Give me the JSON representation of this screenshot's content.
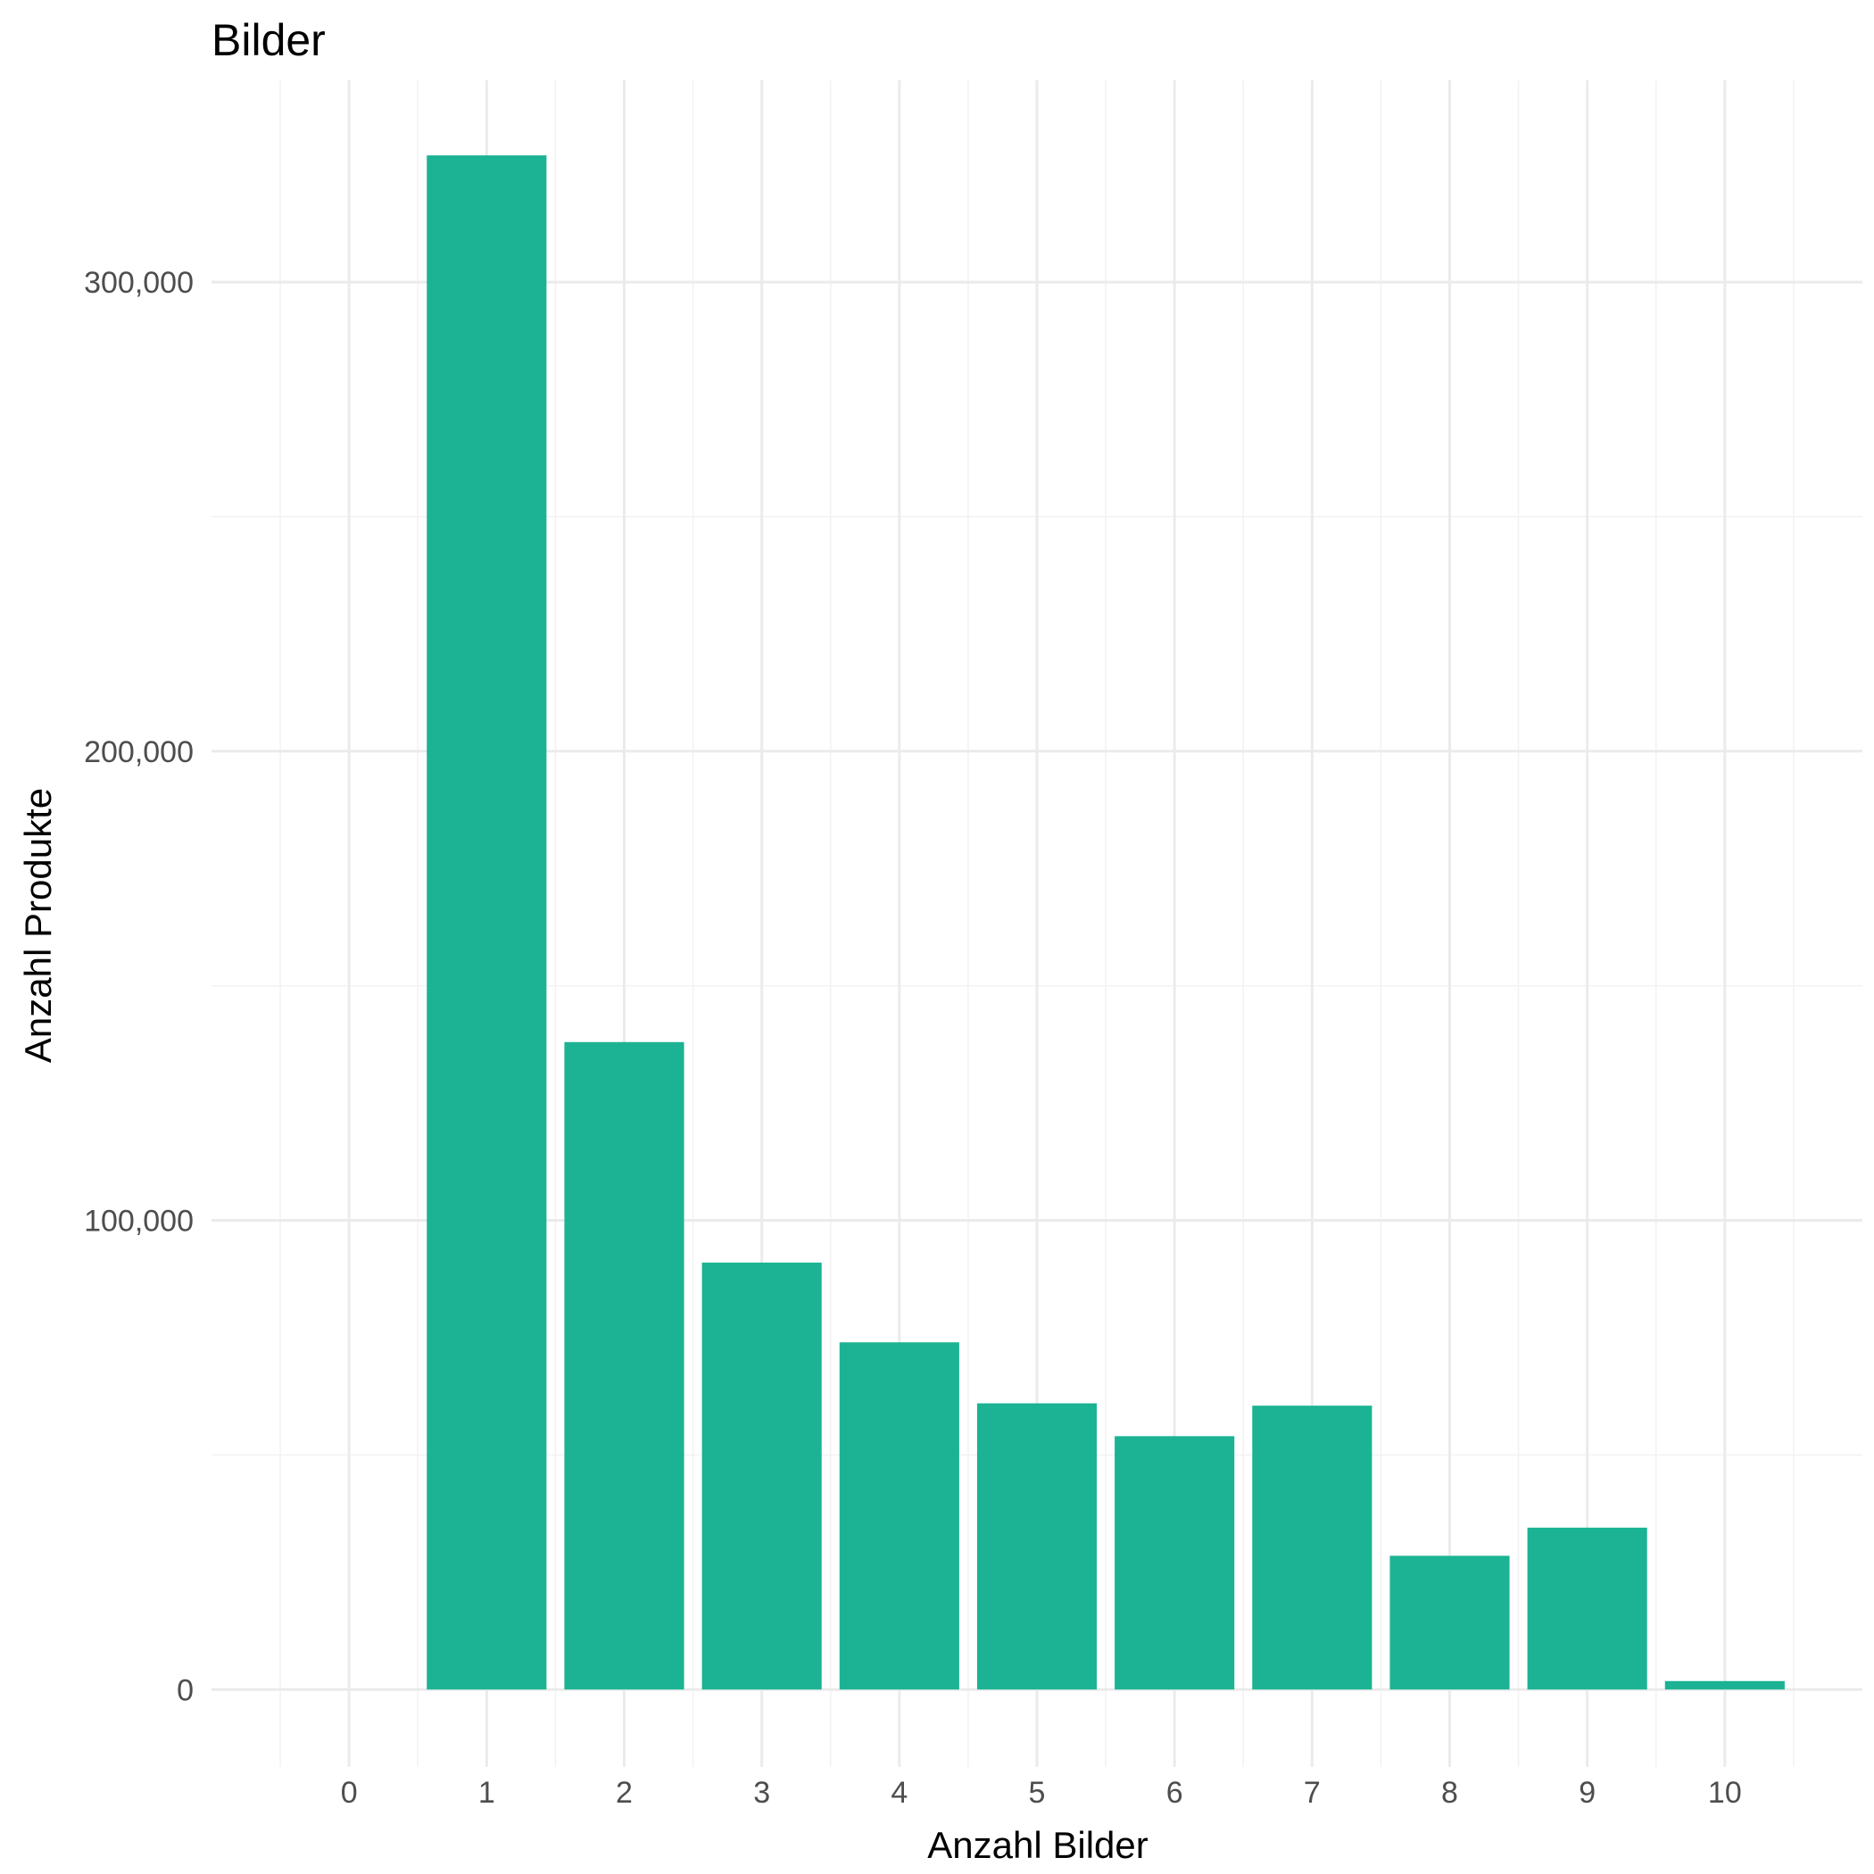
{
  "chart_data": {
    "type": "bar",
    "title": "Bilder",
    "xlabel": "Anzahl Bilder",
    "ylabel": "Anzahl Produkte",
    "categories": [
      0,
      1,
      2,
      3,
      4,
      5,
      6,
      7,
      8,
      9,
      10
    ],
    "values": [
      0,
      327000,
      138000,
      91000,
      74000,
      61000,
      54000,
      60500,
      28500,
      34500,
      1800
    ],
    "x_ticks": [
      "0",
      "1",
      "2",
      "3",
      "4",
      "5",
      "6",
      "7",
      "8",
      "9",
      "10"
    ],
    "y_ticks": [
      0,
      100000,
      200000,
      300000
    ],
    "y_tick_labels": [
      "0",
      "100,000",
      "200,000",
      "300,000"
    ],
    "ylim": [
      -16500,
      343000
    ],
    "xlim": [
      -1,
      11
    ],
    "grid": true,
    "bar_color": "#1bb393"
  }
}
